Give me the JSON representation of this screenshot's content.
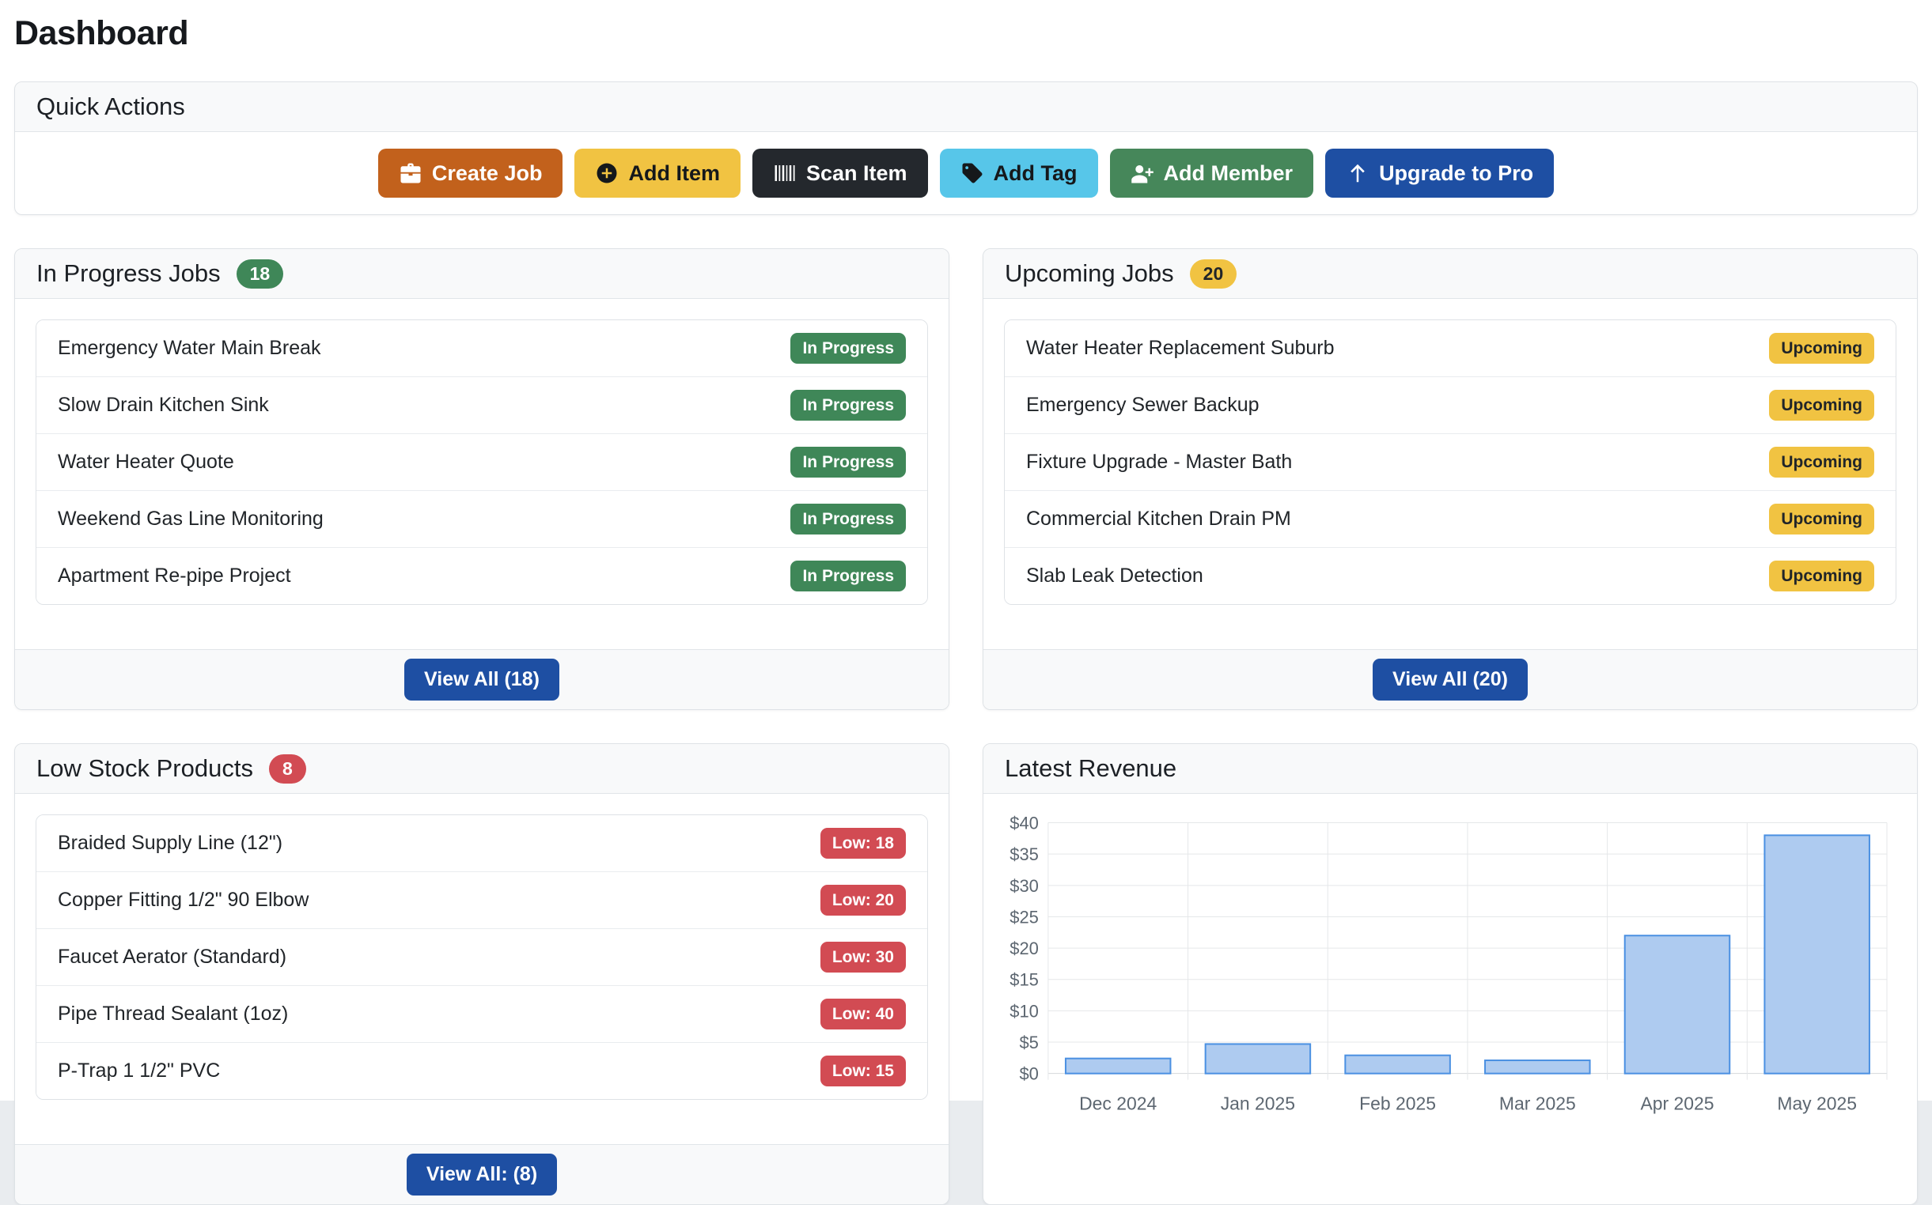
{
  "page": {
    "title": "Dashboard"
  },
  "colors": {
    "accent_blue": "#1e4fa3",
    "success_green": "#3f8758",
    "warning_yellow": "#f1c342",
    "danger_red": "#d24b53"
  },
  "quick_actions": {
    "title": "Quick Actions",
    "buttons": [
      {
        "label": "Create Job",
        "icon": "briefcase-icon",
        "bg": "#c2611c",
        "fg": "#ffffff"
      },
      {
        "label": "Add Item",
        "icon": "plus-circle-icon",
        "bg": "#f1c342",
        "fg": "#15181b"
      },
      {
        "label": "Scan Item",
        "icon": "barcode-icon",
        "bg": "#24282d",
        "fg": "#ffffff"
      },
      {
        "label": "Add Tag",
        "icon": "tag-icon",
        "bg": "#57c6e9",
        "fg": "#15181b"
      },
      {
        "label": "Add Member",
        "icon": "person-plus-icon",
        "bg": "#46875a",
        "fg": "#ffffff"
      },
      {
        "label": "Upgrade to Pro",
        "icon": "arrow-up-icon",
        "bg": "#1e4fa3",
        "fg": "#ffffff"
      }
    ]
  },
  "panels": {
    "in_progress": {
      "title": "In Progress Jobs",
      "count": "18",
      "view_all": "View All (18)",
      "items": [
        {
          "label": "Emergency Water Main Break",
          "badge": "In Progress"
        },
        {
          "label": "Slow Drain Kitchen Sink",
          "badge": "In Progress"
        },
        {
          "label": "Water Heater Quote",
          "badge": "In Progress"
        },
        {
          "label": "Weekend Gas Line Monitoring",
          "badge": "In Progress"
        },
        {
          "label": "Apartment Re-pipe Project",
          "badge": "In Progress"
        }
      ]
    },
    "upcoming": {
      "title": "Upcoming Jobs",
      "count": "20",
      "view_all": "View All (20)",
      "items": [
        {
          "label": "Water Heater Replacement Suburb",
          "badge": "Upcoming"
        },
        {
          "label": "Emergency Sewer Backup",
          "badge": "Upcoming"
        },
        {
          "label": "Fixture Upgrade - Master Bath",
          "badge": "Upcoming"
        },
        {
          "label": "Commercial Kitchen Drain PM",
          "badge": "Upcoming"
        },
        {
          "label": "Slab Leak Detection",
          "badge": "Upcoming"
        }
      ]
    },
    "low_stock": {
      "title": "Low Stock Products",
      "count": "8",
      "view_all": "View All: (8)",
      "items": [
        {
          "label": "Braided Supply Line (12\")",
          "badge": "Low: 18"
        },
        {
          "label": "Copper Fitting 1/2\" 90 Elbow",
          "badge": "Low: 20"
        },
        {
          "label": "Faucet Aerator (Standard)",
          "badge": "Low: 30"
        },
        {
          "label": "Pipe Thread Sealant (1oz)",
          "badge": "Low: 40"
        },
        {
          "label": "P-Trap 1 1/2\" PVC",
          "badge": "Low: 15"
        }
      ]
    },
    "revenue": {
      "title": "Latest Revenue"
    }
  },
  "chart_data": {
    "type": "bar",
    "title": "Latest Revenue",
    "categories": [
      "Dec 2024",
      "Jan 2025",
      "Feb 2025",
      "Mar 2025",
      "Apr 2025",
      "May 2025"
    ],
    "values": [
      2.4,
      4.7,
      2.9,
      2.1,
      22,
      38
    ],
    "xlabel": "",
    "ylabel": "",
    "ylim": [
      0,
      40
    ],
    "ytick_step": 5,
    "ytick_prefix": "$",
    "grid": true,
    "legend": false,
    "bar_fill": "#aecbf0",
    "bar_stroke": "#4a90e2",
    "grid_color": "#e5e7e9",
    "tick_color": "#5c6670"
  }
}
